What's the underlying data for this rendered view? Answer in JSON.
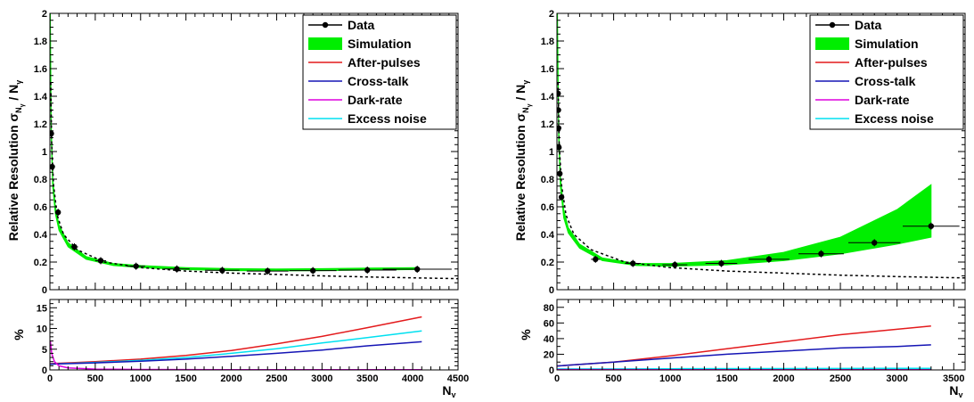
{
  "colors": {
    "data": "#000000",
    "simulation": "#00ee00",
    "after_pulses": "#e31a1c",
    "cross_talk": "#1515b5",
    "dark_rate": "#dd00dd",
    "excess_noise": "#00e0f0",
    "fit": "#000000"
  },
  "chart_data": [
    {
      "type": "line",
      "panel": "left-top",
      "ylabel_main": "Relative Resolution σ",
      "ylabel_sub": "N",
      "ylabel_subsub": "γ",
      "ylabel_tail": " / N",
      "ylabel_tailsub": "γ",
      "xlim": [
        0,
        4500
      ],
      "ylim": [
        0,
        2
      ],
      "yticks": [
        "0",
        "0.2",
        "0.4",
        "0.6",
        "0.8",
        "1",
        "1.2",
        "1.4",
        "1.6",
        "1.8",
        "2"
      ],
      "legend": [
        "Data",
        "Simulation",
        "After-pulses",
        "Cross-talk",
        "Dark-rate",
        "Excess noise"
      ],
      "data_points": [
        {
          "x": 15,
          "y": 1.13,
          "xerr": 5
        },
        {
          "x": 25,
          "y": 0.89,
          "xerr": 8
        },
        {
          "x": 90,
          "y": 0.56,
          "xerr": 20
        },
        {
          "x": 270,
          "y": 0.31,
          "xerr": 40
        },
        {
          "x": 560,
          "y": 0.21,
          "xerr": 60
        },
        {
          "x": 950,
          "y": 0.17,
          "xerr": 100
        },
        {
          "x": 1400,
          "y": 0.15,
          "xerr": 140
        },
        {
          "x": 1900,
          "y": 0.14,
          "xerr": 190
        },
        {
          "x": 2400,
          "y": 0.135,
          "xerr": 230
        },
        {
          "x": 2900,
          "y": 0.138,
          "xerr": 260
        },
        {
          "x": 3500,
          "y": 0.142,
          "xerr": 320
        },
        {
          "x": 4050,
          "y": 0.148,
          "xerr": 380
        }
      ],
      "simulation_band": {
        "x": [
          5,
          15,
          30,
          60,
          100,
          200,
          400,
          700,
          1000,
          1500,
          2000,
          2500,
          3000,
          3500,
          4050
        ],
        "lower": [
          1.9,
          1.1,
          0.75,
          0.55,
          0.43,
          0.31,
          0.22,
          0.175,
          0.16,
          0.145,
          0.138,
          0.136,
          0.138,
          0.142,
          0.146
        ],
        "upper": [
          2.0,
          1.2,
          0.82,
          0.6,
          0.47,
          0.34,
          0.24,
          0.19,
          0.175,
          0.16,
          0.152,
          0.15,
          0.152,
          0.156,
          0.16
        ]
      },
      "fit_curve": {
        "x": [
          10,
          20,
          40,
          80,
          150,
          300,
          600,
          1000,
          1500,
          2000,
          2500,
          3000,
          3500,
          4000,
          4500
        ],
        "y": [
          1.5,
          1.06,
          0.76,
          0.54,
          0.4,
          0.29,
          0.2,
          0.16,
          0.135,
          0.12,
          0.11,
          0.1,
          0.092,
          0.086,
          0.08
        ]
      }
    },
    {
      "type": "line",
      "panel": "left-bottom",
      "ylabel": "%",
      "xlabel": "N",
      "xlabel_sub": "γ",
      "xlim": [
        0,
        4500
      ],
      "ylim": [
        0,
        17
      ],
      "yticks": [
        "0",
        "5",
        "10",
        "15"
      ],
      "xticks": [
        "0",
        "500",
        "1000",
        "1500",
        "2000",
        "2500",
        "3000",
        "3500",
        "4000",
        "4500"
      ],
      "series": [
        {
          "key": "after_pulses",
          "x": [
            0,
            500,
            1000,
            1500,
            2000,
            2500,
            3000,
            3500,
            4100
          ],
          "y": [
            1.5,
            2.0,
            2.6,
            3.5,
            4.7,
            6.3,
            8.1,
            10.2,
            12.8
          ]
        },
        {
          "key": "excess_noise",
          "x": [
            0,
            500,
            1000,
            1500,
            2000,
            2500,
            3000,
            3500,
            4100
          ],
          "y": [
            1.4,
            1.8,
            2.3,
            3.0,
            4.0,
            5.1,
            6.5,
            7.8,
            9.4
          ]
        },
        {
          "key": "cross_talk",
          "x": [
            0,
            500,
            1000,
            1500,
            2000,
            2500,
            3000,
            3500,
            4100
          ],
          "y": [
            1.4,
            1.7,
            2.1,
            2.6,
            3.3,
            4.0,
            4.8,
            5.8,
            6.8
          ]
        },
        {
          "key": "dark_rate",
          "x": [
            5,
            20,
            50,
            100,
            200,
            500,
            1000,
            2000,
            3000,
            4100
          ],
          "y": [
            7,
            4,
            2,
            1,
            0.5,
            0.2,
            0.1,
            0.05,
            0.05,
            0.05
          ]
        }
      ]
    },
    {
      "type": "line",
      "panel": "right-top",
      "ylabel_main": "Relative Resolution σ",
      "ylabel_sub": "N",
      "ylabel_subsub": "γ",
      "ylabel_tail": " / N",
      "ylabel_tailsub": "γ",
      "xlim": [
        0,
        3600
      ],
      "ylim": [
        0,
        2
      ],
      "yticks": [
        "0",
        "0.2",
        "0.4",
        "0.6",
        "0.8",
        "1",
        "1.2",
        "1.4",
        "1.6",
        "1.8",
        "2"
      ],
      "legend": [
        "Data",
        "Simulation",
        "After-pulses",
        "Cross-talk",
        "Dark-rate",
        "Excess noise"
      ],
      "data_points": [
        {
          "x": 10,
          "y": 1.42,
          "xerr": 3
        },
        {
          "x": 12,
          "y": 1.3,
          "xerr": 3
        },
        {
          "x": 14,
          "y": 1.17,
          "xerr": 3
        },
        {
          "x": 17,
          "y": 1.03,
          "xerr": 4
        },
        {
          "x": 25,
          "y": 0.84,
          "xerr": 5
        },
        {
          "x": 40,
          "y": 0.67,
          "xerr": 8
        },
        {
          "x": 340,
          "y": 0.22,
          "xerr": 40
        },
        {
          "x": 670,
          "y": 0.19,
          "xerr": 70
        },
        {
          "x": 1040,
          "y": 0.18,
          "xerr": 110
        },
        {
          "x": 1450,
          "y": 0.19,
          "xerr": 140
        },
        {
          "x": 1870,
          "y": 0.22,
          "xerr": 180
        },
        {
          "x": 2330,
          "y": 0.26,
          "xerr": 200
        },
        {
          "x": 2800,
          "y": 0.34,
          "xerr": 230
        },
        {
          "x": 3300,
          "y": 0.46,
          "xerr": 250
        }
      ],
      "simulation_band": {
        "x": [
          5,
          15,
          30,
          60,
          100,
          200,
          400,
          700,
          1000,
          1500,
          2000,
          2500,
          3000,
          3300
        ],
        "lower": [
          1.9,
          1.1,
          0.75,
          0.52,
          0.41,
          0.3,
          0.21,
          0.175,
          0.17,
          0.18,
          0.21,
          0.26,
          0.33,
          0.38
        ],
        "upper": [
          2.0,
          1.2,
          0.82,
          0.58,
          0.45,
          0.33,
          0.23,
          0.19,
          0.19,
          0.21,
          0.27,
          0.38,
          0.58,
          0.76
        ]
      },
      "fit_curve": {
        "x": [
          10,
          20,
          40,
          80,
          150,
          300,
          600,
          1000,
          1500,
          2000,
          2500,
          3000,
          3600
        ],
        "y": [
          1.5,
          1.06,
          0.76,
          0.54,
          0.4,
          0.29,
          0.2,
          0.16,
          0.135,
          0.12,
          0.105,
          0.095,
          0.085
        ]
      }
    },
    {
      "type": "line",
      "panel": "right-bottom",
      "ylabel": "%",
      "xlabel": "N",
      "xlabel_sub": "γ",
      "xlim": [
        0,
        3600
      ],
      "ylim": [
        0,
        90
      ],
      "yticks": [
        "0",
        "20",
        "40",
        "60",
        "80"
      ],
      "xticks": [
        "0",
        "500",
        "1000",
        "1500",
        "2000",
        "2500",
        "3000",
        "3500"
      ],
      "series": [
        {
          "key": "after_pulses",
          "x": [
            0,
            500,
            1000,
            1500,
            2000,
            2500,
            3000,
            3300
          ],
          "y": [
            5,
            10,
            18,
            27,
            36,
            45,
            52,
            56
          ]
        },
        {
          "key": "cross_talk",
          "x": [
            0,
            500,
            1000,
            1500,
            2000,
            2500,
            3000,
            3300
          ],
          "y": [
            5,
            10,
            15,
            20,
            24,
            28,
            30,
            32
          ]
        },
        {
          "key": "excess_noise",
          "x": [
            0,
            500,
            1000,
            2000,
            3000,
            3300
          ],
          "y": [
            1.2,
            1.3,
            1.5,
            1.7,
            2.0,
            2.1
          ]
        },
        {
          "key": "dark_rate",
          "x": [
            0,
            500,
            1000,
            2000,
            3000,
            3300
          ],
          "y": [
            0.5,
            0.4,
            0.3,
            0.3,
            0.3,
            0.3
          ]
        }
      ]
    }
  ]
}
